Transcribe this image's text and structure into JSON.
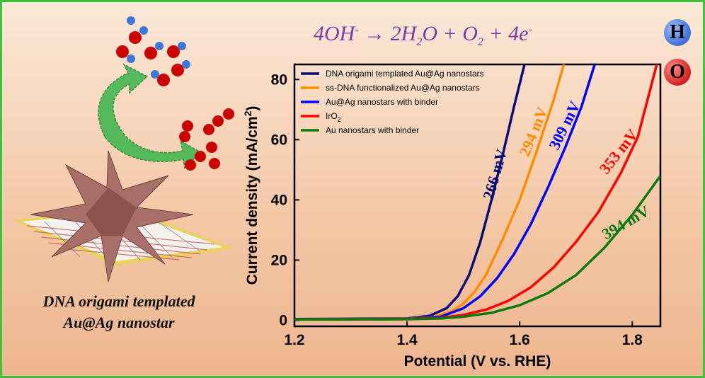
{
  "reaction": {
    "lhs_base": "4OH",
    "lhs_sup": "-",
    "arrow": "→",
    "p1": "2H",
    "p1_sub": "2",
    "p2": "O + O",
    "p2_sub": "2",
    "p3": " + 4e",
    "p3_sup": "-"
  },
  "badges": {
    "h": "H",
    "o": "O"
  },
  "caption": {
    "line1": "DNA origami templated",
    "line2": "Au@Ag nanostar"
  },
  "colors": {
    "border": "#3cc23c",
    "navy": "#0a0a78",
    "orange": "#ff8c00",
    "blue": "#0000ff",
    "red": "#ff0000",
    "green": "#0a7a0a",
    "reaction": "#7c3aa8",
    "badge_h": "#3a6fd8",
    "badge_o": "#d42020",
    "star": "#a9706a",
    "molecule_red": "#cc0000",
    "molecule_blue": "#3b78d8"
  },
  "illustration": {
    "star_icon": "nanostar-icon",
    "origami_icon": "dna-origami-icon",
    "arrow_icon": "curved-arrow-icon",
    "molecule_icons": [
      "hydroxide-molecule-icon",
      "oxygen-molecule-icon"
    ]
  },
  "chart_data": {
    "type": "line",
    "xlabel": "Potential (V vs. RHE)",
    "ylabel": "Current density (mA/cm",
    "ylabel_sup": "2",
    "ylabel_close": ")",
    "xlim": [
      1.2,
      1.85
    ],
    "ylim": [
      -2,
      85
    ],
    "xticks": [
      "1.2",
      "1.4",
      "1.6",
      "1.8"
    ],
    "xtick_values": [
      1.2,
      1.4,
      1.6,
      1.8
    ],
    "yticks": [
      "0",
      "20",
      "40",
      "60",
      "80"
    ],
    "ytick_values": [
      0,
      20,
      40,
      60,
      80
    ],
    "legend_position": "top-left",
    "series": [
      {
        "name": "DNA origami templated Au@Ag nanostars",
        "name_sub": "",
        "color": "#0a0a78",
        "annotation": "266 mV",
        "x": [
          1.2,
          1.4,
          1.44,
          1.47,
          1.49,
          1.51,
          1.53,
          1.55,
          1.57,
          1.59,
          1.61
        ],
        "y": [
          0.4,
          0.6,
          1.5,
          4,
          8,
          15,
          26,
          40,
          55,
          71,
          86
        ]
      },
      {
        "name": "ss-DNA functionalized Au@Ag nanostars",
        "name_sub": "",
        "color": "#ff8c00",
        "annotation": "294 mV",
        "x": [
          1.2,
          1.4,
          1.45,
          1.48,
          1.5,
          1.52,
          1.54,
          1.57,
          1.6,
          1.63,
          1.66,
          1.68
        ],
        "y": [
          0.3,
          0.5,
          1.2,
          3,
          5.5,
          9.5,
          15,
          27,
          40,
          56,
          73,
          86
        ]
      },
      {
        "name": "Au@Ag nanostars with binder",
        "name_sub": "",
        "color": "#0000ff",
        "annotation": "309 mV",
        "x": [
          1.2,
          1.4,
          1.46,
          1.5,
          1.53,
          1.56,
          1.59,
          1.62,
          1.65,
          1.68,
          1.71,
          1.735
        ],
        "y": [
          0.3,
          0.4,
          1.2,
          4,
          8,
          14,
          22,
          32,
          44,
          57,
          71,
          86
        ]
      },
      {
        "name": "IrO",
        "name_sub": "2",
        "color": "#ff0000",
        "annotation": "353 mV",
        "x": [
          1.2,
          1.4,
          1.46,
          1.5,
          1.54,
          1.58,
          1.62,
          1.66,
          1.7,
          1.74,
          1.78,
          1.81,
          1.845
        ],
        "y": [
          0.3,
          0.4,
          0.8,
          1.8,
          3.5,
          6.5,
          11,
          17.5,
          26,
          36,
          49,
          61,
          86
        ]
      },
      {
        "name": "Au nanostars with binder",
        "name_sub": "",
        "color": "#0a7a0a",
        "annotation": "394 mV",
        "x": [
          1.2,
          1.4,
          1.46,
          1.5,
          1.55,
          1.6,
          1.65,
          1.7,
          1.75,
          1.8,
          1.85
        ],
        "y": [
          0.3,
          0.35,
          0.6,
          1.2,
          2.5,
          5,
          9,
          15,
          24,
          35,
          48
        ]
      }
    ]
  }
}
